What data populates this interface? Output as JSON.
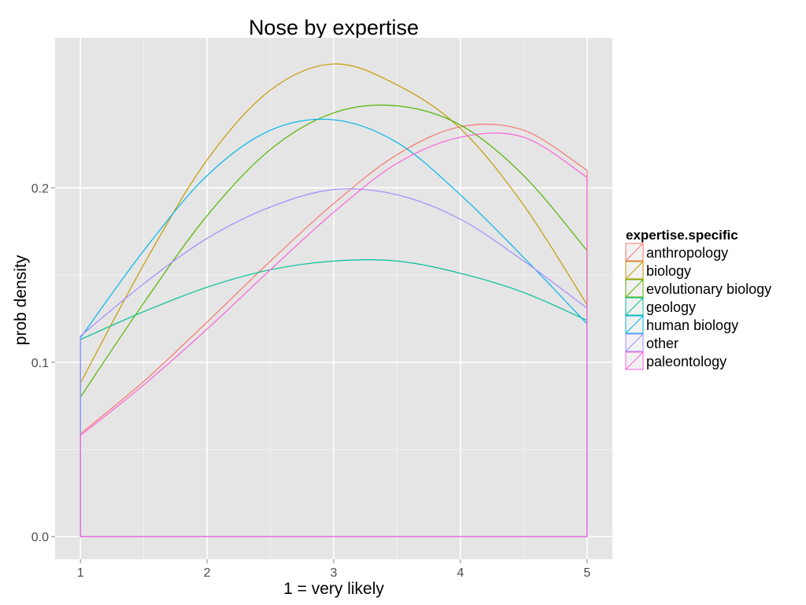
{
  "chart_data": {
    "type": "line",
    "title": "Nose  by expertise",
    "xlabel": "1 = very likely",
    "ylabel": "prob density",
    "xlim": [
      0.8,
      5.2
    ],
    "ylim": [
      -0.013,
      0.286
    ],
    "x_ticks": [
      1,
      2,
      3,
      4,
      5
    ],
    "x_tick_labels": [
      "1",
      "2",
      "3",
      "4",
      "5"
    ],
    "y_ticks": [
      0.0,
      0.1,
      0.2
    ],
    "y_tick_labels": [
      "0.0",
      "0.1",
      "0.2"
    ],
    "grid": true,
    "background": "#e5e5e5",
    "legend": {
      "title": "expertise.specific",
      "placement": "right"
    },
    "x": [
      1.0,
      1.5,
      2.0,
      2.5,
      3.0,
      3.5,
      4.0,
      4.5,
      5.0
    ],
    "series": [
      {
        "name": "anthropology",
        "color": "#f8766d",
        "values": [
          0.059,
          0.089,
          0.123,
          0.158,
          0.191,
          0.219,
          0.235,
          0.233,
          0.21
        ]
      },
      {
        "name": "biology",
        "color": "#c49a00",
        "values": [
          0.088,
          0.156,
          0.216,
          0.256,
          0.271,
          0.259,
          0.234,
          0.19,
          0.133
        ]
      },
      {
        "name": "evolutionary biology",
        "color": "#53b400",
        "values": [
          0.08,
          0.134,
          0.184,
          0.222,
          0.243,
          0.247,
          0.236,
          0.207,
          0.164
        ]
      },
      {
        "name": "geology",
        "color": "#00c094",
        "values": [
          0.113,
          0.129,
          0.143,
          0.153,
          0.158,
          0.158,
          0.151,
          0.14,
          0.124
        ]
      },
      {
        "name": "human biology",
        "color": "#00b6eb",
        "values": [
          0.114,
          0.164,
          0.207,
          0.233,
          0.239,
          0.226,
          0.196,
          0.16,
          0.122
        ]
      },
      {
        "name": "other",
        "color": "#a58aff",
        "values": [
          0.115,
          0.145,
          0.171,
          0.189,
          0.199,
          0.196,
          0.182,
          0.158,
          0.131
        ]
      },
      {
        "name": "paleontology",
        "color": "#fb61d7",
        "values": [
          0.058,
          0.087,
          0.119,
          0.153,
          0.186,
          0.214,
          0.229,
          0.229,
          0.206
        ]
      }
    ]
  }
}
